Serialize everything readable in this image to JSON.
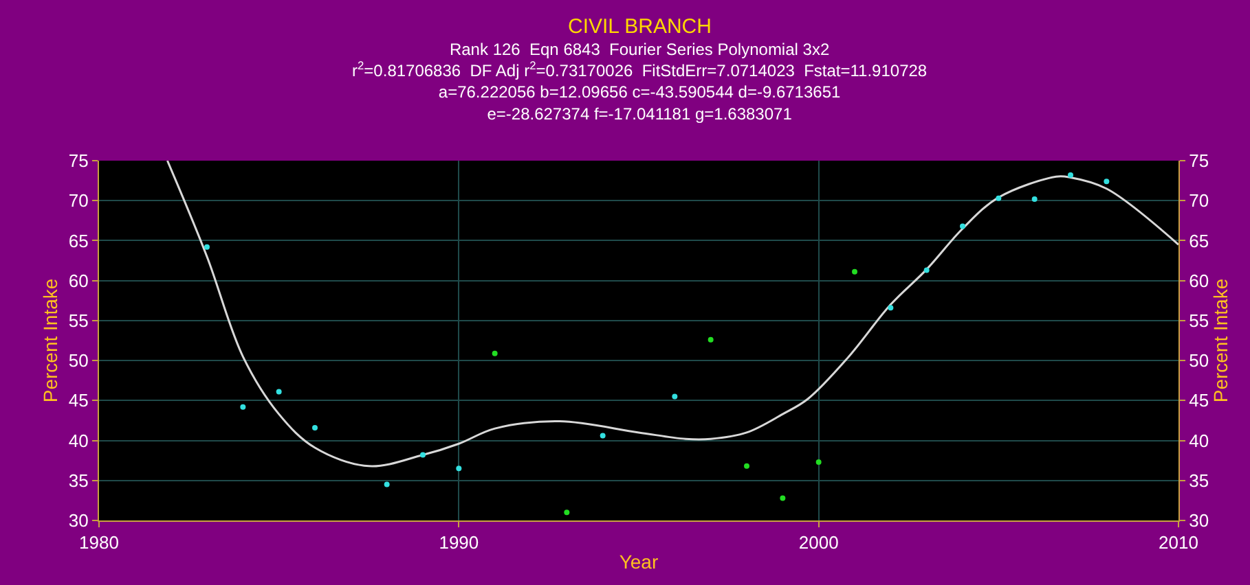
{
  "chart_data": {
    "type": "scatter",
    "title": "CIVIL BRANCH",
    "subtitle": "Rank 126  Eqn 6843  Fourier Series Polynomial 3x2\nr$^{2}$=0.81706836  DF Adj r$^{2}$=0.73170026  FitStdErr=7.0714023  Fstat=11.910728\na=76.222056 b=12.09656 c=-43.590544 d=-9.6713651\ne=-28.627374 f=-17.041181 g=1.6383071",
    "xlabel": "Year",
    "ylabel": "Percent Intake",
    "y2label": "Percent Intake",
    "xlim": [
      1980,
      2010
    ],
    "xticks": [
      1980,
      1990,
      2000,
      2010
    ],
    "ylim": [
      30,
      75
    ],
    "yticks": [
      30,
      35,
      40,
      45,
      50,
      55,
      60,
      65,
      70,
      75
    ],
    "y2lim": [
      30,
      75
    ],
    "y2ticks": [
      30,
      35,
      40,
      45,
      50,
      55,
      60,
      65,
      70,
      75
    ],
    "grid": true,
    "series": [
      {
        "marker": "circle",
        "x": [
          1983,
          1984,
          1985,
          1986,
          1988,
          1989,
          1990,
          1991,
          1993,
          1994,
          1996,
          1997,
          1998,
          1999,
          2000,
          2001,
          2002,
          2003,
          2004,
          2005,
          2006,
          2007,
          2008
        ],
        "values": [
          64.2,
          44.2,
          46.1,
          41.6,
          34.5,
          38.2,
          36.5,
          50.9,
          31,
          40.6,
          45.5,
          52.6,
          36.8,
          32.8,
          37.3,
          61.1,
          56.6,
          61.3,
          66.8,
          70.3,
          70.2,
          73.2,
          72.4
        ],
        "colors": [
          "#33e0e0",
          "#33e0e0",
          "#33e0e0",
          "#33e0e0",
          "#33e0e0",
          "#33e0e0",
          "#33e0e0",
          "#22dd22",
          "#22dd22",
          "#33e0e0",
          "#33e0e0",
          "#22dd22",
          "#22dd22",
          "#22dd22",
          "#22dd22",
          "#22dd22",
          "#33e0e0",
          "#33e0e0",
          "#33e0e0",
          "#33e0e0",
          "#33e0e0",
          "#33e0e0",
          "#33e0e0"
        ]
      },
      {
        "type": "line",
        "color": "#d8d8d8",
        "line_style": "solid",
        "marker": "none",
        "x": [
          1981.9,
          1983,
          1984,
          1985,
          1986,
          1987.5,
          1989,
          1990,
          1991,
          1992.8,
          1995,
          1996.3,
          1997,
          1998,
          1999,
          1999.7,
          2000.8,
          2002,
          2003,
          2004,
          2005,
          2006.6,
          2007,
          2008,
          2010
        ],
        "values": [
          75,
          63,
          50.5,
          43.3,
          39.1,
          36.8,
          38.2,
          39.6,
          41.5,
          42.4,
          41,
          40.2,
          40.2,
          41,
          43.3,
          45.2,
          50.3,
          57,
          61.4,
          66.5,
          70.4,
          73,
          72.9,
          71.5,
          64.5
        ]
      }
    ]
  }
}
